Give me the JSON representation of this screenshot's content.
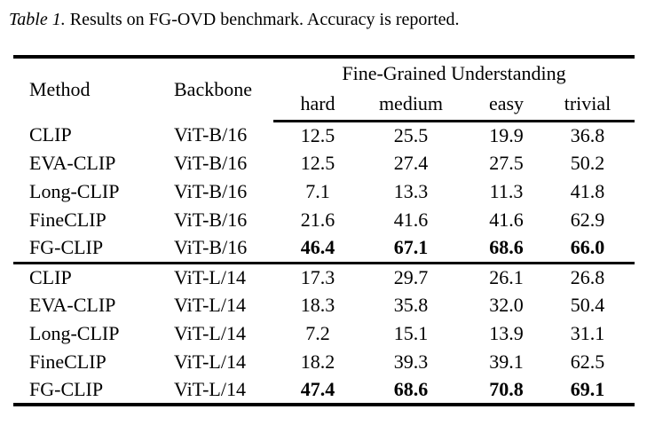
{
  "caption": {
    "label": "Table 1.",
    "text": "Results on FG-OVD benchmark. Accuracy is reported."
  },
  "table": {
    "columns": {
      "method": "Method",
      "backbone": "Backbone",
      "group": "Fine-Grained Understanding",
      "sub": [
        "hard",
        "medium",
        "easy",
        "trivial"
      ]
    },
    "groups": [
      {
        "rows": [
          {
            "method": "CLIP",
            "backbone": "ViT-B/16",
            "hard": "12.5",
            "medium": "25.5",
            "easy": "19.9",
            "trivial": "36.8"
          },
          {
            "method": "EVA-CLIP",
            "backbone": "ViT-B/16",
            "hard": "12.5",
            "medium": "27.4",
            "easy": "27.5",
            "trivial": "50.2"
          },
          {
            "method": "Long-CLIP",
            "backbone": "ViT-B/16",
            "hard": "7.1",
            "medium": "13.3",
            "easy": "11.3",
            "trivial": "41.8"
          },
          {
            "method": "FineCLIP",
            "backbone": "ViT-B/16",
            "hard": "21.6",
            "medium": "41.6",
            "easy": "41.6",
            "trivial": "62.9"
          },
          {
            "method": "FG-CLIP",
            "backbone": "ViT-B/16",
            "hard": "46.4",
            "medium": "67.1",
            "easy": "68.6",
            "trivial": "66.0"
          }
        ]
      },
      {
        "rows": [
          {
            "method": "CLIP",
            "backbone": "ViT-L/14",
            "hard": "17.3",
            "medium": "29.7",
            "easy": "26.1",
            "trivial": "26.8"
          },
          {
            "method": "EVA-CLIP",
            "backbone": "ViT-L/14",
            "hard": "18.3",
            "medium": "35.8",
            "easy": "32.0",
            "trivial": "50.4"
          },
          {
            "method": "Long-CLIP",
            "backbone": "ViT-L/14",
            "hard": "7.2",
            "medium": "15.1",
            "easy": "13.9",
            "trivial": "31.1"
          },
          {
            "method": "FineCLIP",
            "backbone": "ViT-L/14",
            "hard": "18.2",
            "medium": "39.3",
            "easy": "39.1",
            "trivial": "62.5"
          },
          {
            "method": "FG-CLIP",
            "backbone": "ViT-L/14",
            "hard": "47.4",
            "medium": "68.6",
            "easy": "70.8",
            "trivial": "69.1"
          }
        ]
      }
    ]
  }
}
